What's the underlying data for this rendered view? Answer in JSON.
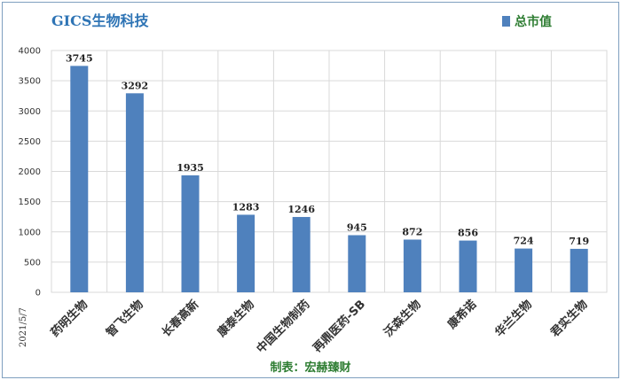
{
  "chart_data": {
    "type": "bar",
    "title": "GICS生物科技",
    "categories": [
      "药明生物",
      "智飞生物",
      "长春高新",
      "康泰生物",
      "中国生物制药",
      "再鼎医药-SB",
      "沃森生物",
      "康希诺",
      "华兰生物",
      "君实生物"
    ],
    "series": [
      {
        "name": "总市值",
        "values": [
          3745,
          3292,
          1935,
          1283,
          1246,
          945,
          872,
          856,
          724,
          719
        ]
      }
    ],
    "ylim": [
      0,
      4000
    ],
    "yticks": [
      0,
      500,
      1000,
      1500,
      2000,
      2500,
      3000,
      3500,
      4000
    ],
    "xlabel": "",
    "ylabel": "",
    "grid": true,
    "legend_position": "top-right",
    "bar_color": "#4f81bd"
  },
  "footer": {
    "credit": "制表：宏赫臻财",
    "date": "2021/5/7"
  }
}
